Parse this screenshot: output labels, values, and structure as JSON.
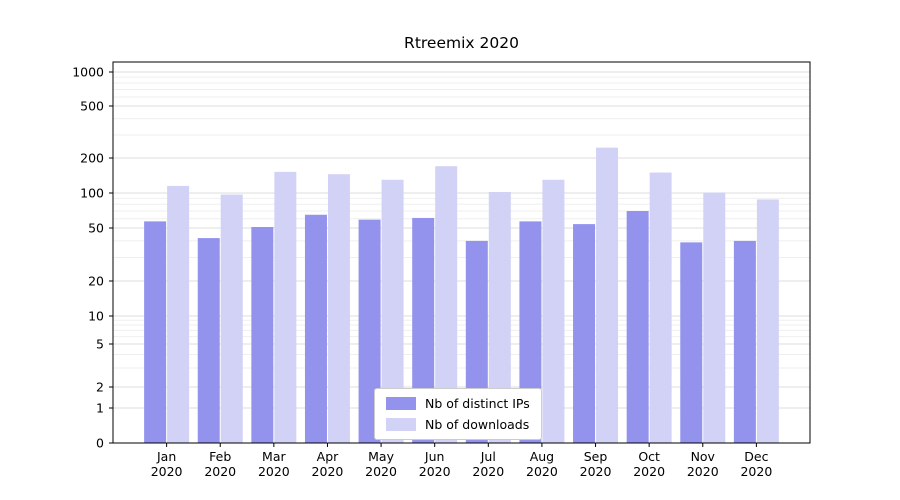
{
  "title": "Rtreemix 2020",
  "legend": {
    "items": [
      {
        "label": "Nb of distinct IPs",
        "color": "#9393ee"
      },
      {
        "label": "Nb of downloads",
        "color": "#d2d2f7"
      }
    ]
  },
  "chart_data": {
    "type": "bar",
    "scale": "symlog",
    "title": "Rtreemix 2020",
    "grid": true,
    "legend_position": "lower center",
    "categories": [
      "Jan 2020",
      "Feb 2020",
      "Mar 2020",
      "Apr 2020",
      "May 2020",
      "Jun 2020",
      "Jul 2020",
      "Aug 2020",
      "Sep 2020",
      "Oct 2020",
      "Nov 2020",
      "Dec 2020"
    ],
    "series": [
      {
        "name": "Nb of distinct IPs",
        "color": "#9393ee",
        "values": [
          57,
          42,
          51,
          65,
          59,
          61,
          40,
          57,
          54,
          70,
          39,
          40
        ]
      },
      {
        "name": "Nb of downloads",
        "color": "#d2d2f7",
        "values": [
          115,
          97,
          152,
          145,
          130,
          170,
          102,
          130,
          240,
          150,
          101,
          88
        ]
      }
    ],
    "yticks": [
      0,
      1,
      2,
      5,
      10,
      20,
      50,
      100,
      200,
      500,
      1000
    ],
    "ytick_labels": [
      "0",
      "1",
      "2",
      "5",
      "10",
      "20",
      "50",
      "100",
      "200",
      "500",
      "1000"
    ],
    "ylim": [
      0,
      1200
    ]
  }
}
